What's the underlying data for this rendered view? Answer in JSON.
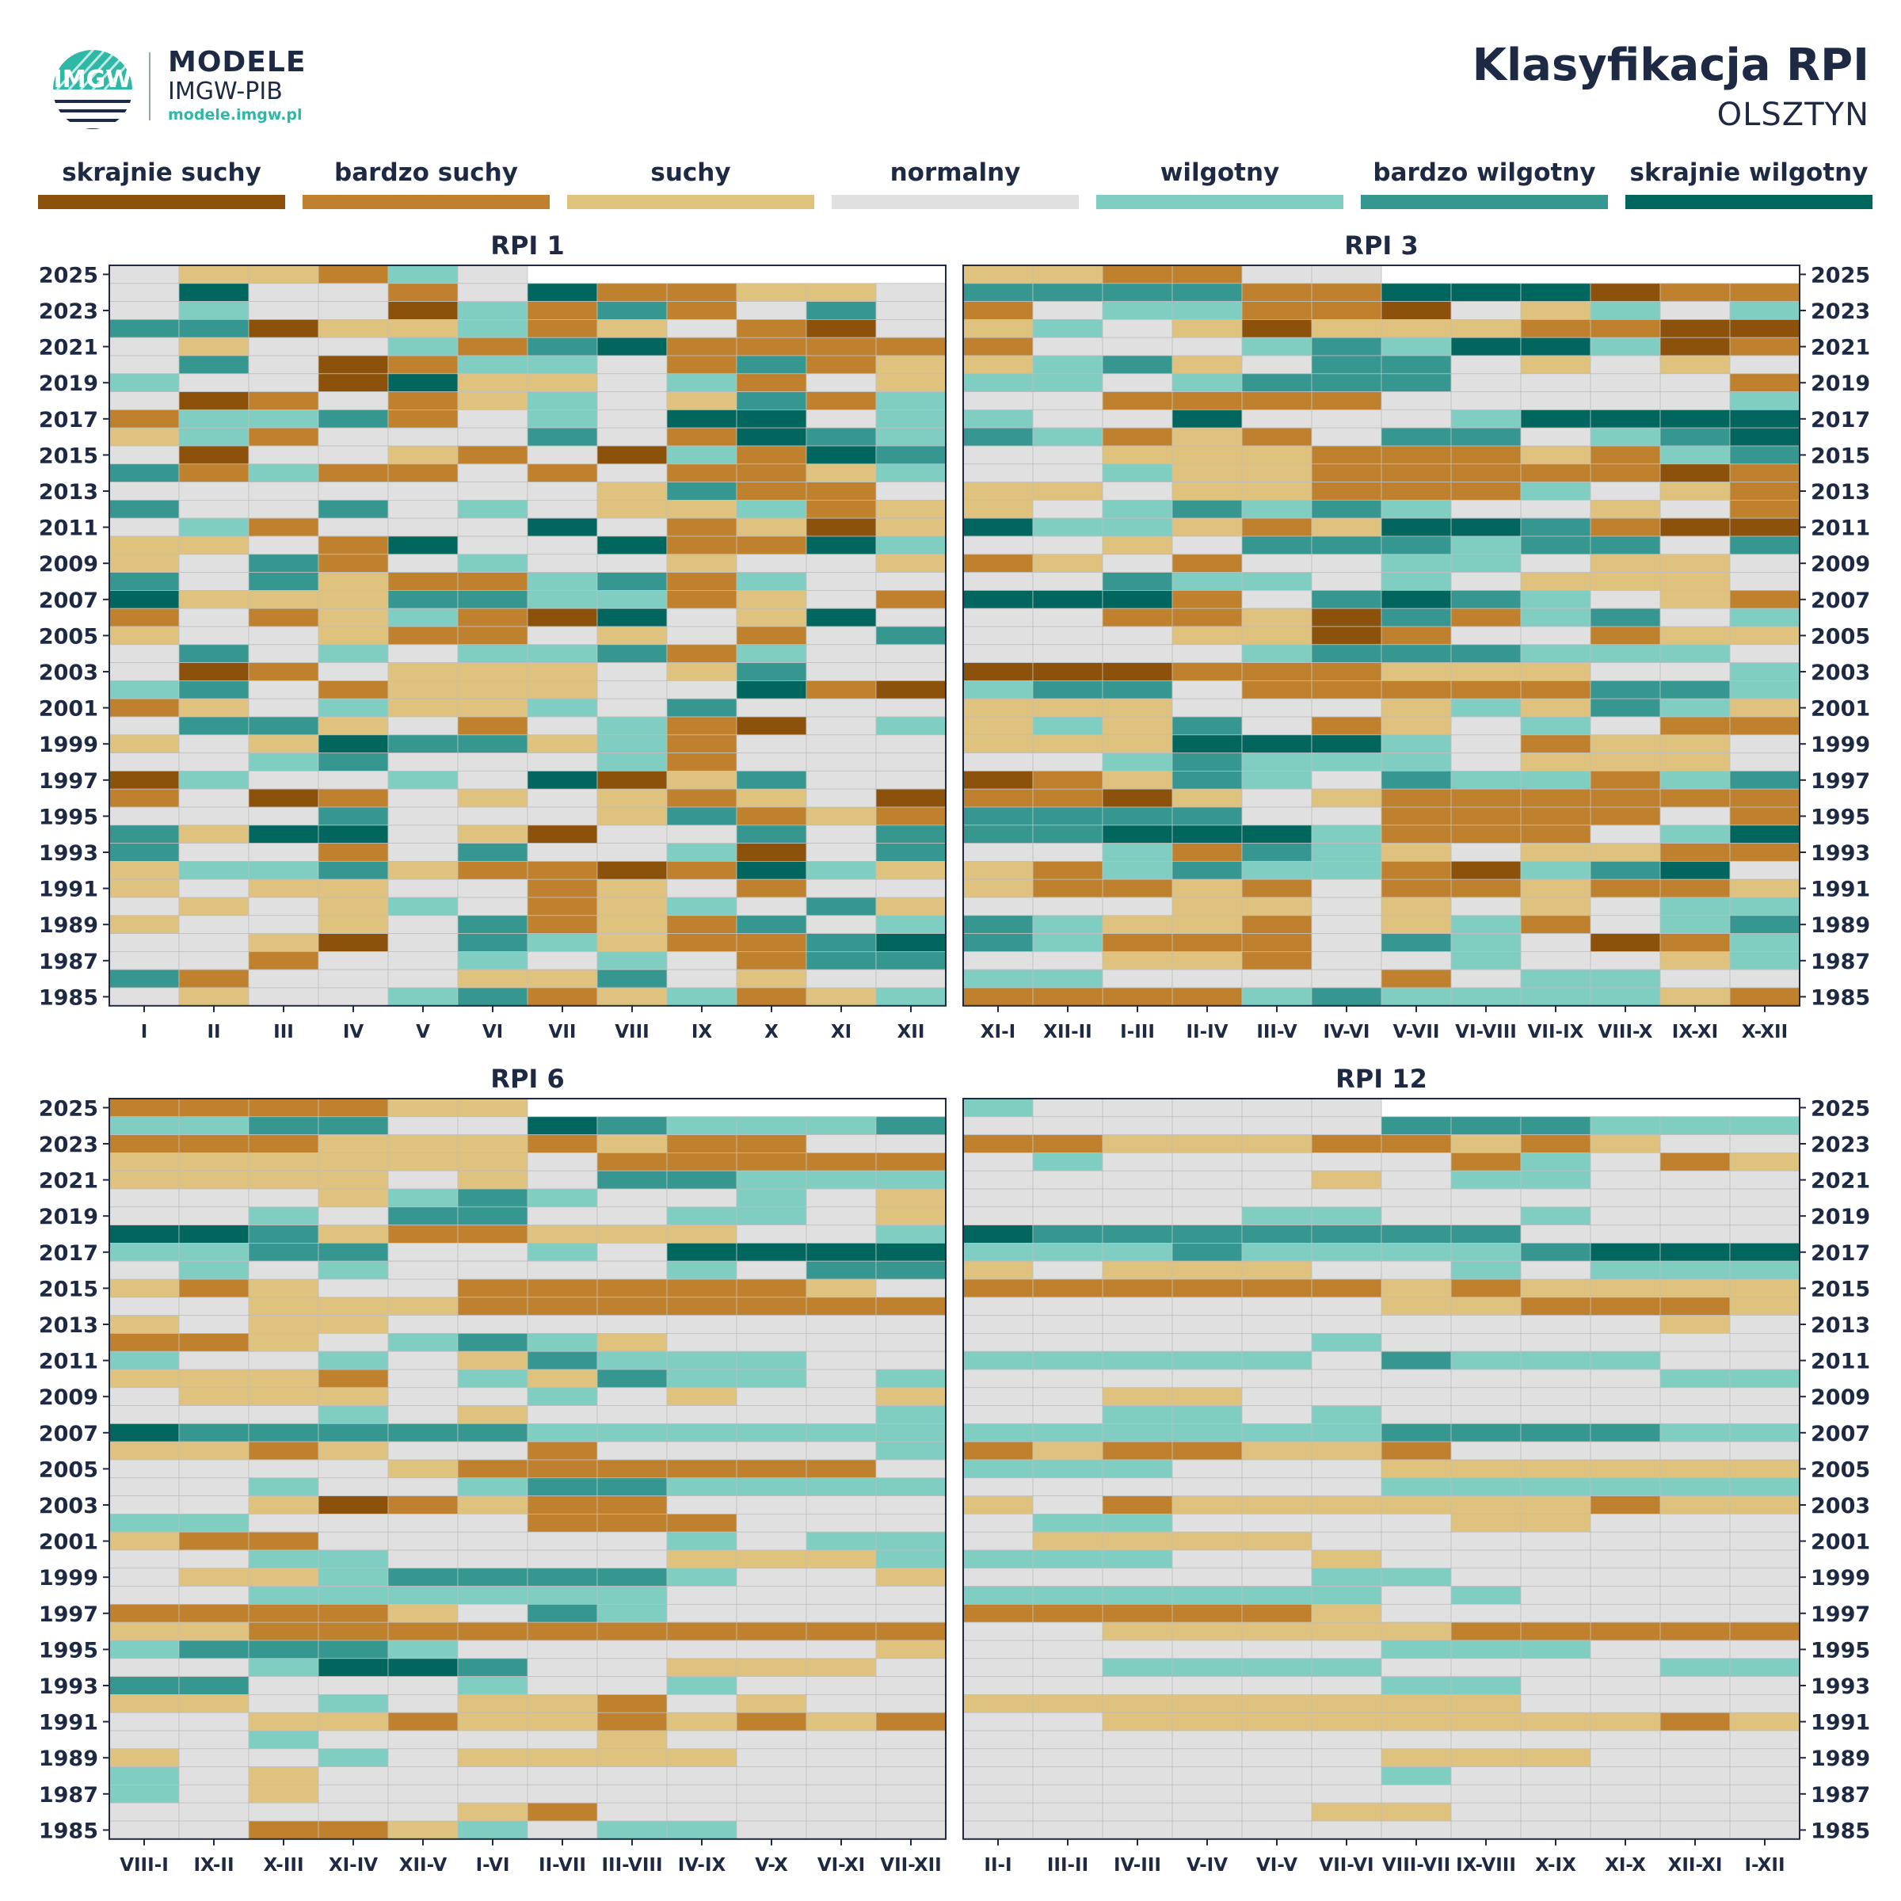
{
  "brand": {
    "name": "MODELE",
    "sub": "IMGW-PIB",
    "url": "modele.imgw.pl",
    "logo_text": "IMGW",
    "logo_icon": "imgw-logo-icon"
  },
  "title": "Klasyfikacja RPI",
  "station": "OLSZTYN",
  "colors": {
    "A": "#8c510a",
    "B": "#bf812d",
    "C": "#dfc27d",
    "D": "#e0e0e0",
    "E": "#80cdc1",
    "F": "#35978f",
    "G": "#01665e",
    "grid": "#bfbfbf",
    "frame": "#1e2a44"
  },
  "legend": [
    {
      "code": "A",
      "label": "skrajnie suchy"
    },
    {
      "code": "B",
      "label": "bardzo suchy"
    },
    {
      "code": "C",
      "label": "suchy"
    },
    {
      "code": "D",
      "label": "normalny"
    },
    {
      "code": "E",
      "label": "wilgotny"
    },
    {
      "code": "F",
      "label": "bardzo wilgotny"
    },
    {
      "code": "G",
      "label": "skrajnie wilgotny"
    }
  ],
  "chart_data": [
    {
      "type": "heatmap",
      "title": "RPI 1",
      "years": [
        2025,
        2024,
        2023,
        2022,
        2021,
        2020,
        2019,
        2018,
        2017,
        2016,
        2015,
        2014,
        2013,
        2012,
        2011,
        2010,
        2009,
        2008,
        2007,
        2006,
        2005,
        2004,
        2003,
        2002,
        2001,
        2000,
        1999,
        1998,
        1997,
        1996,
        1995,
        1994,
        1993,
        1992,
        1991,
        1990,
        1989,
        1988,
        1987,
        1986,
        1985
      ],
      "year_ticks": [
        2025,
        2023,
        2021,
        2019,
        2017,
        2015,
        2013,
        2011,
        2009,
        2007,
        2005,
        2003,
        2001,
        1999,
        1997,
        1995,
        1993,
        1991,
        1989,
        1987,
        1985
      ],
      "periods": [
        "I",
        "II",
        "III",
        "IV",
        "V",
        "VI",
        "VII",
        "VIII",
        "IX",
        "X",
        "XI",
        "XII"
      ],
      "grid": [
        "DCCBEDNNNNNN",
        "DGDDBDGBBCCD",
        "DEDDAEBFBDFD",
        "FFACCEBCDBAD",
        "DCDDEBFGBBBB",
        "DFDABEEDBFBC",
        "EDDAGCCDEBDC",
        "DABDBCEDCFBE",
        "BEEFBDEDGGDE",
        "CEBDDDFDBGFE",
        "DADDCBDAEBGF",
        "FBEBBDBDBBCE",
        "DDDDDDDCFBBD",
        "FDDFDEDCCEBC",
        "DEBDDDGDBCAC",
        "CCDBGDDGBBGE",
        "CDFBDEDDCDDC",
        "FDFCBBEFBEDD",
        "GCCCFFEEBCDB",
        "BDBCEBAGDCGD",
        "CDDCBBDCDBDF",
        "DFDEDEEFBEDD",
        "DABDCCCDCFDD",
        "EFDBCCCDDGBA",
        "BCDECCEDFDDD",
        "DFFCDBDEBADE",
        "CDCGFFCEBDDD",
        "DDEFDDDEBDDD",
        "AEDDEDGACFDD",
        "BDABDCDCBCDA",
        "DDDFDDDCFBCB",
        "FCGGDCADDFDF",
        "FDDBDFDDEADF",
        "CEEFCBBABGEC",
        "CDCCDDBCDBDD",
        "DCDCEDBCEDFC",
        "CDDCDFBCBFDE",
        "DDCADFECBBFG",
        "DDBDDEDEDBFF",
        "FBDDDCCFDCDD",
        "DCDDEFBCEBCE"
      ]
    },
    {
      "type": "heatmap",
      "title": "RPI 3",
      "years": [
        2025,
        2024,
        2023,
        2022,
        2021,
        2020,
        2019,
        2018,
        2017,
        2016,
        2015,
        2014,
        2013,
        2012,
        2011,
        2010,
        2009,
        2008,
        2007,
        2006,
        2005,
        2004,
        2003,
        2002,
        2001,
        2000,
        1999,
        1998,
        1997,
        1996,
        1995,
        1994,
        1993,
        1992,
        1991,
        1990,
        1989,
        1988,
        1987,
        1986,
        1985
      ],
      "year_ticks": [
        2025,
        2023,
        2021,
        2019,
        2017,
        2015,
        2013,
        2011,
        2009,
        2007,
        2005,
        2003,
        2001,
        1999,
        1997,
        1995,
        1993,
        1991,
        1989,
        1987,
        1985
      ],
      "periods": [
        "XI-I",
        "XII-II",
        "I-III",
        "II-IV",
        "III-V",
        "IV-VI",
        "V-VII",
        "VI-VIII",
        "VII-IX",
        "VIII-X",
        "IX-XI",
        "X-XII"
      ],
      "grid": [
        "CCBBDDNNNNNN",
        "FFFFBBGGGABB",
        "BDEEBBADCEDE",
        "CEDCACCCBBAA",
        "BDDDEFEGGEAB",
        "CEFCDFFDCDCD",
        "EEDEFFFDDDDB",
        "DDBBBBDDDDDE",
        "EDDGDDDEGGGG",
        "FEBCBDFFDEFG",
        "DDCCCBBBCBEF",
        "DDECCBBBBBAB",
        "CCDCCBBBEDCB",
        "CDEFEFEDDCDB",
        "GEECBCGGFBAA",
        "DDCDFFFEFFDF",
        "BCDBDDEEDCCD",
        "DDFEEDEDCCCD",
        "GGGBDFGFEDCB",
        "DDBBCAFBEFDE",
        "DDDCCABDDBCC",
        "DDDDEFFFEEED",
        "AAABBBCCCDDE",
        "EFFDBBBBBFFE",
        "CCCDDDCECFEC",
        "CECFDBCDEDBB",
        "CCCGGGEDBCCD",
        "DDEFEEEDCCCD",
        "ABCFEDFEEBEF",
        "BBACDCBBBBBB",
        "FFFFDDBBBBDB",
        "FFGGGEBBBDEG",
        "DDEBFECDCCBB",
        "CBEFEEBAEFGD",
        "CBBCBDBBCBBC",
        "DDDCCDCDCDEE",
        "FECCBDCEBDEF",
        "FEBBBDFEDABE",
        "DDCCBDDEDDCE",
        "EEDDDDBDEEDD",
        "BBBBEFEEEECB"
      ]
    },
    {
      "type": "heatmap",
      "title": "RPI 6",
      "years": [
        2025,
        2024,
        2023,
        2022,
        2021,
        2020,
        2019,
        2018,
        2017,
        2016,
        2015,
        2014,
        2013,
        2012,
        2011,
        2010,
        2009,
        2008,
        2007,
        2006,
        2005,
        2004,
        2003,
        2002,
        2001,
        2000,
        1999,
        1998,
        1997,
        1996,
        1995,
        1994,
        1993,
        1992,
        1991,
        1990,
        1989,
        1988,
        1987,
        1986,
        1985
      ],
      "year_ticks": [
        2025,
        2023,
        2021,
        2019,
        2017,
        2015,
        2013,
        2011,
        2009,
        2007,
        2005,
        2003,
        2001,
        1999,
        1997,
        1995,
        1993,
        1991,
        1989,
        1987,
        1985
      ],
      "periods": [
        "VIII-I",
        "IX-II",
        "X-III",
        "XI-IV",
        "XII-V",
        "I-VI",
        "II-VII",
        "III-VIII",
        "IV-IX",
        "V-X",
        "VI-XI",
        "VII-XII"
      ],
      "grid": [
        "BBBBCCNNNNNN",
        "EEFFDDGFEEEF",
        "BBBCCCBCBBDD",
        "CCCCCCDBBBBB",
        "CCCCDCDFFEEE",
        "DDDCEFEDDEDC",
        "DDEDFFDDEEDC",
        "GGFCBBCCCDDE",
        "EEFFDDEDGGGG",
        "DEDEDDDDEDFF",
        "CBCDDBBBBBCD",
        "DDCCCBBBBBBB",
        "CDCCDDDDDDDD",
        "BBCDEFECDDDD",
        "EDDEDCFEEEDD",
        "CCCBDECFEEDE",
        "DCCCDDEDCDDC",
        "DDDEDCDDDDDE",
        "GFFFFFEEEEEE",
        "CCBCDDBDDDDE",
        "DDDDCBBBBBBD",
        "DDEDDEFFEEEE",
        "DDCABCBBDDDD",
        "EEDDDDBBBDDD",
        "CBBDDDDDEDEE",
        "DDEEDDDDCCCE",
        "DCCEFFFFEDDC",
        "DDEEEEEEDDDD",
        "BBBBCDFEDDDD",
        "CCBBBBBBBBBB",
        "EFFFEDDDDDDC",
        "DDEGGFDDCCCD",
        "FFDDDEDDEDDD",
        "CCDEDCCBDCDD",
        "DDCCBCCBCBCB",
        "DDEDDDDCDDDD",
        "CDDEDCCCCDDD",
        "EDCDDDDDDDDD",
        "EDCDDDDDDDDD",
        "DDDDDCBDDDDD",
        "DDBBCEDEEDDD"
      ]
    },
    {
      "type": "heatmap",
      "title": "RPI 12",
      "years": [
        2025,
        2024,
        2023,
        2022,
        2021,
        2020,
        2019,
        2018,
        2017,
        2016,
        2015,
        2014,
        2013,
        2012,
        2011,
        2010,
        2009,
        2008,
        2007,
        2006,
        2005,
        2004,
        2003,
        2002,
        2001,
        2000,
        1999,
        1998,
        1997,
        1996,
        1995,
        1994,
        1993,
        1992,
        1991,
        1990,
        1989,
        1988,
        1987,
        1986,
        1985
      ],
      "year_ticks": [
        2025,
        2023,
        2021,
        2019,
        2017,
        2015,
        2013,
        2011,
        2009,
        2007,
        2005,
        2003,
        2001,
        1999,
        1997,
        1995,
        1993,
        1991,
        1989,
        1987,
        1985
      ],
      "periods": [
        "II-I",
        "III-II",
        "IV-III",
        "V-IV",
        "VI-V",
        "VII-VI",
        "VIII-VII",
        "IX-VIII",
        "X-IX",
        "XI-X",
        "XII-XI",
        "I-XII"
      ],
      "grid": [
        "EDDDDDNNNNNN",
        "DDDDDDFFFEEE",
        "BBCCCBBCBCDD",
        "DEDDDDDBEDBC",
        "DDDDDCDEEDDD",
        "DDDDDDDDDDDD",
        "DDDDEEDDEDDD",
        "GFFFFFFFDDDD",
        "EEEFEEEEFGGG",
        "CDCCCDDEDEEE",
        "BBBBBBCBCCCC",
        "DDDDDDCCBBBC",
        "DDDDDDDDDDCD",
        "DDDDDEDDDDDD",
        "EEEEEDFEEEDD",
        "DDDDDDDDDDEE",
        "DDCCDDDDDDDD",
        "DDEEDEDDDDDD",
        "EEEEEEFFFFEE",
        "BCBBCCBDDDDD",
        "EEEDDDCCCCCC",
        "DDDDDDEEEEEE",
        "CDBCCCCCCBCC",
        "DEEDDDDCCDDD",
        "DCCCCDDDDDDD",
        "EEEDDCDDDDDD",
        "DDDDDEEDDDDD",
        "EEEEEEDEDDDD",
        "BBBBBCDDDDDD",
        "DDCCCCCBBBBB",
        "DDDDDDEEEDDD",
        "DDEEEEDDDDEE",
        "DDDDDDEEDDDD",
        "CCCCCCCCDDDD",
        "DDCCCCCCCCBC",
        "DDDDDDDDDDDD",
        "DDDDDDCCCDDD",
        "DDDDDDEDDDDD",
        "DDDDDDDDDDDD",
        "DDDDDCCDDDDD",
        "DDDDDDDDDDDD"
      ]
    }
  ]
}
